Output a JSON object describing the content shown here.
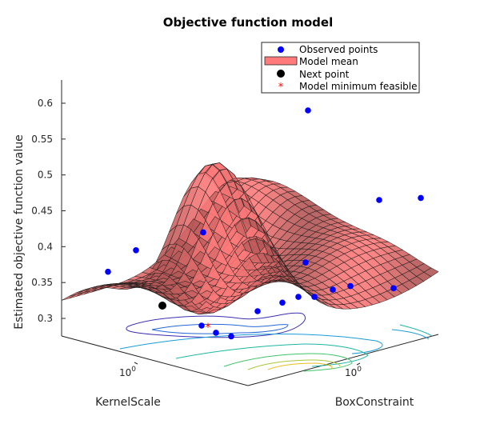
{
  "chart_data": {
    "type": "surface",
    "title": "Objective function model",
    "xlabel": "KernelScale",
    "ylabel": "BoxConstraint",
    "zlabel": "Estimated objective function value",
    "zticks": [
      "0.3",
      "0.35",
      "0.4",
      "0.45",
      "0.5",
      "0.55",
      "0.6"
    ],
    "zlim": [
      0.28,
      0.62
    ],
    "x_tick": {
      "base": "10",
      "exp": "0"
    },
    "y_tick": {
      "base": "10",
      "exp": "0"
    },
    "legend": {
      "placement": "top-right",
      "entries": [
        "Observed points",
        "Model mean",
        "Next point",
        "Model minimum feasible"
      ]
    },
    "colors": {
      "surface": "#ff7a7a",
      "observed": "#0000ff",
      "next": "#000000",
      "minimum": "#ff0000"
    },
    "observed_points_z": [
      0.365,
      0.395,
      0.42,
      0.29,
      0.28,
      0.275,
      0.31,
      0.322,
      0.33,
      0.33,
      0.345,
      0.378,
      0.34,
      0.342,
      0.465,
      0.468,
      0.59
    ]
  }
}
